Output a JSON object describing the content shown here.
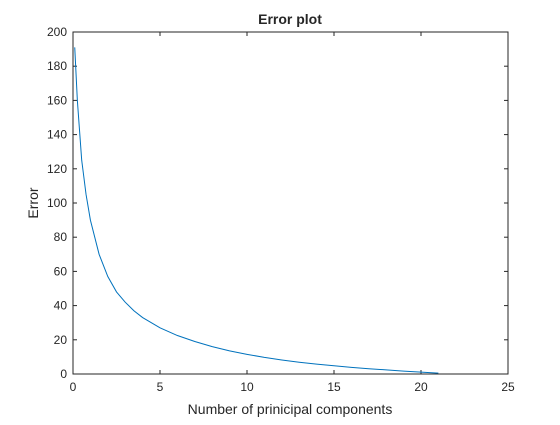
{
  "chart_data": {
    "type": "line",
    "title": "Error plot",
    "xlabel": "Number of prinicipal components",
    "ylabel": "Error",
    "xlim": [
      0,
      25
    ],
    "ylim": [
      0,
      200
    ],
    "xticks": [
      0,
      5,
      10,
      15,
      20,
      25
    ],
    "yticks": [
      0,
      20,
      40,
      60,
      80,
      100,
      120,
      140,
      160,
      180,
      200
    ],
    "grid": false,
    "legend": "none",
    "series": [
      {
        "color": "#0072bd",
        "x": [
          0.1,
          0.25,
          0.5,
          0.75,
          1,
          1.5,
          2,
          2.5,
          3,
          3.5,
          4,
          5,
          6,
          7,
          8,
          9,
          10,
          11,
          12,
          13,
          14,
          15,
          16,
          17,
          18,
          19,
          20,
          21
        ],
        "y": [
          191,
          160,
          125,
          105,
          90,
          70,
          57,
          48,
          42,
          37,
          33,
          27,
          22.5,
          19,
          16,
          13.5,
          11.5,
          9.7,
          8.2,
          6.9,
          5.8,
          4.8,
          3.9,
          3.1,
          2.4,
          1.7,
          1.1,
          0.5
        ]
      }
    ]
  }
}
